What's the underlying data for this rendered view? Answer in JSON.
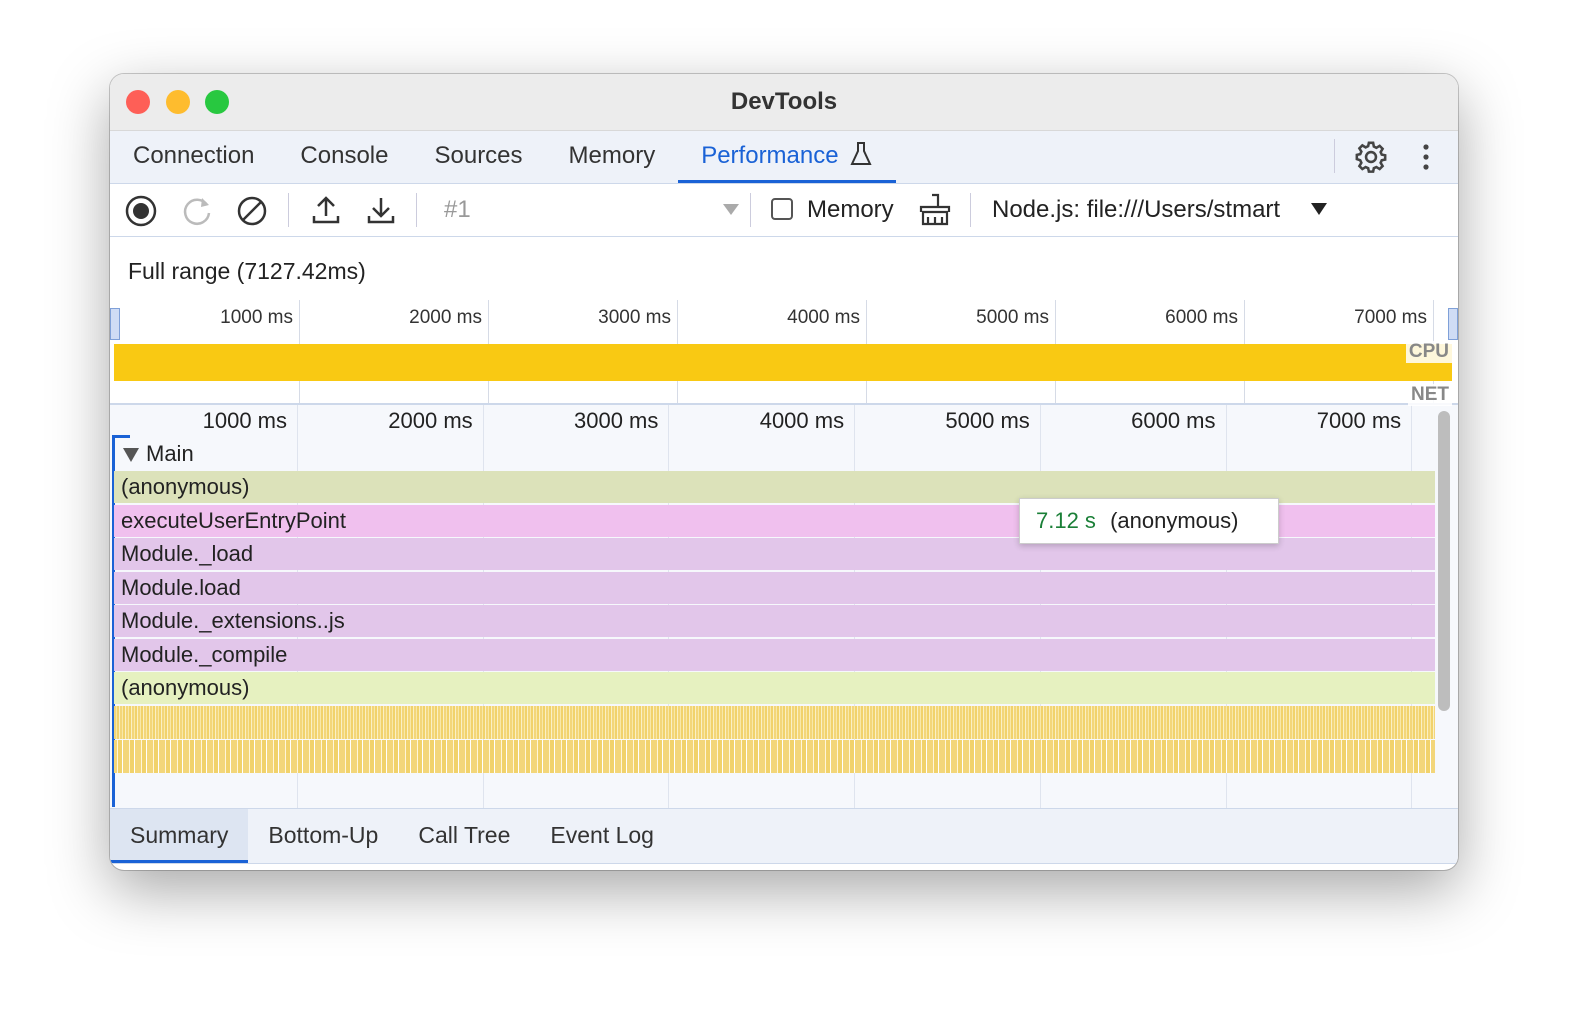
{
  "window": {
    "title": "DevTools"
  },
  "tabs": [
    "Connection",
    "Console",
    "Sources",
    "Memory",
    "Performance"
  ],
  "toolbar": {
    "recording": "#1",
    "memory_checkbox": "Memory",
    "target": "Node.js: file:///Users/stmart"
  },
  "overview": {
    "range_label": "Full range (7127.42ms)",
    "ticks": [
      "1000 ms",
      "2000 ms",
      "3000 ms",
      "4000 ms",
      "5000 ms",
      "6000 ms",
      "7000 ms"
    ],
    "cpu_label": "CPU",
    "net_label": "NET"
  },
  "timeline": {
    "ticks": [
      "1000 ms",
      "2000 ms",
      "3000 ms",
      "4000 ms",
      "5000 ms",
      "6000 ms",
      "7000 ms"
    ],
    "track": "Main",
    "rows": [
      "(anonymous)",
      "executeUserEntryPoint",
      "Module._load",
      "Module.load",
      "Module._extensions..js",
      "Module._compile",
      "(anonymous)"
    ]
  },
  "tooltip": {
    "duration": "7.12 s",
    "name": "(anonymous)"
  },
  "bottom_tabs": [
    "Summary",
    "Bottom-Up",
    "Call Tree",
    "Event Log"
  ]
}
